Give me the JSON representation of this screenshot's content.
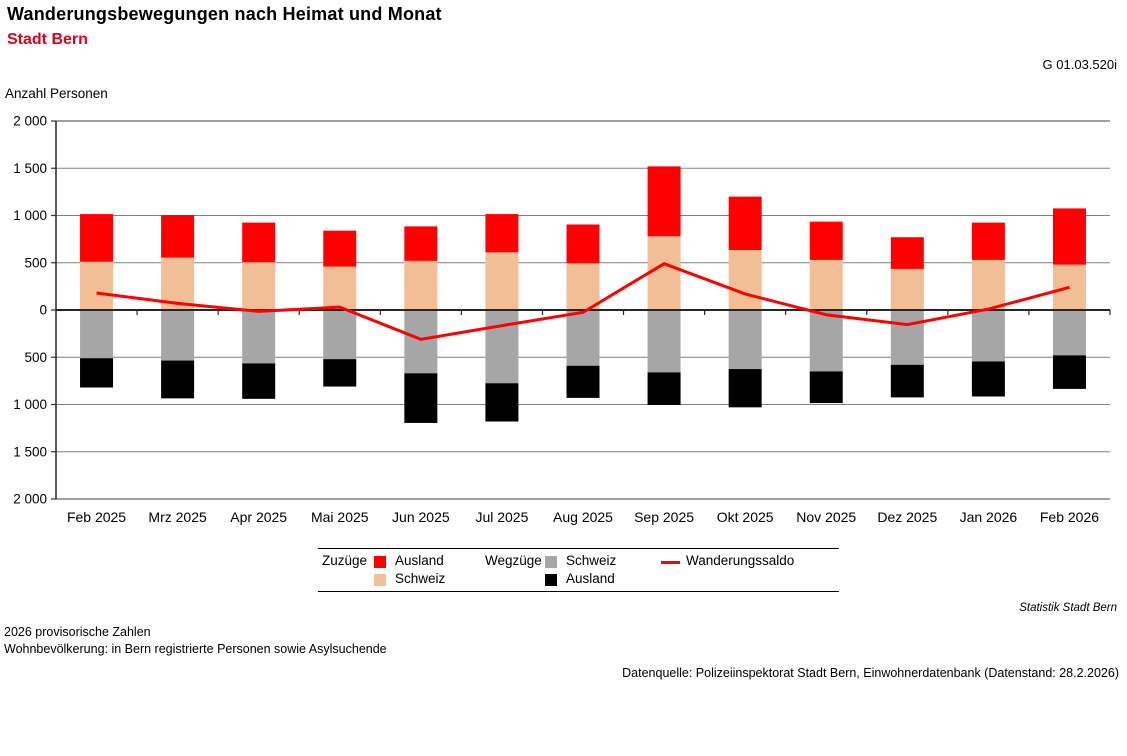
{
  "header": {
    "title": "Wanderungsbewegungen nach Heimat und Monat",
    "subtitle": "Stadt Bern",
    "graph_id": "G 01.03.520i"
  },
  "chart_data": {
    "type": "bar",
    "subtype": "stacked-bar-with-line",
    "title": "Wanderungsbewegungen nach Heimat und Monat, Stadt Bern",
    "ylabel": "Anzahl Personen",
    "xlabel": "",
    "ylim": [
      -2000,
      2000
    ],
    "ytick_step": 500,
    "ytick_labels": [
      "2 000",
      "1 500",
      "1 000",
      "500",
      "0",
      "500",
      "1 000",
      "1 500",
      "2 000"
    ],
    "grid": true,
    "legend_position": "bottom",
    "categories": [
      "Feb 2025",
      "Mrz 2025",
      "Apr 2025",
      "Mai 2025",
      "Jun 2025",
      "Jul 2025",
      "Aug 2025",
      "Sep 2025",
      "Okt 2025",
      "Nov 2025",
      "Dez 2025",
      "Jan 2026",
      "Feb 2026"
    ],
    "series": [
      {
        "name": "Zuzüge Schweiz",
        "role": "bar-positive",
        "color": "#f2be96",
        "values": [
          510,
          555,
          505,
          460,
          520,
          610,
          495,
          780,
          635,
          530,
          435,
          530,
          480
        ]
      },
      {
        "name": "Zuzüge Ausland",
        "role": "bar-positive",
        "color": "#ff0000",
        "values": [
          505,
          450,
          420,
          380,
          365,
          405,
          410,
          740,
          565,
          405,
          335,
          395,
          595
        ]
      },
      {
        "name": "Wegzüge Schweiz",
        "role": "bar-negative",
        "color": "#a6a6a6",
        "values": [
          510,
          535,
          565,
          520,
          670,
          775,
          590,
          660,
          625,
          650,
          580,
          545,
          480
        ]
      },
      {
        "name": "Wegzüge Ausland",
        "role": "bar-negative",
        "color": "#000000",
        "values": [
          310,
          400,
          375,
          290,
          525,
          405,
          340,
          345,
          405,
          335,
          345,
          370,
          355
        ]
      },
      {
        "name": "Wanderungssaldo",
        "role": "line",
        "color": "#ff0000",
        "values": [
          180,
          70,
          -15,
          30,
          -310,
          -165,
          -25,
          490,
          170,
          -50,
          -155,
          10,
          240
        ]
      }
    ]
  },
  "legend": {
    "zuzuege_label": "Zuzüge",
    "zuzuege_ausland": "Ausland",
    "zuzuege_schweiz": "Schweiz",
    "wegzuege_label": "Wegzüge",
    "wegzuege_schweiz": "Schweiz",
    "wegzuege_ausland": "Ausland",
    "saldo_label": "Wanderungssaldo"
  },
  "footer": {
    "credit": "Statistik Stadt Bern",
    "note1": "2026 provisorische Zahlen",
    "note2": "Wohnbevölkerung: in Bern registrierte Personen sowie Asylsuchende",
    "source": "Datenquelle: Polizeiinspektorat Stadt Bern, Einwohnerdatenbank (Datenstand: 28.2.2026)"
  },
  "colors": {
    "subtitle_red": "#e2001a",
    "bar_red": "#ff0000",
    "bar_peach": "#f2be96",
    "bar_gray": "#a6a6a6",
    "bar_black": "#000000",
    "saldo_line": "#ff0000",
    "gridline": "#808080",
    "axis": "#333333"
  }
}
